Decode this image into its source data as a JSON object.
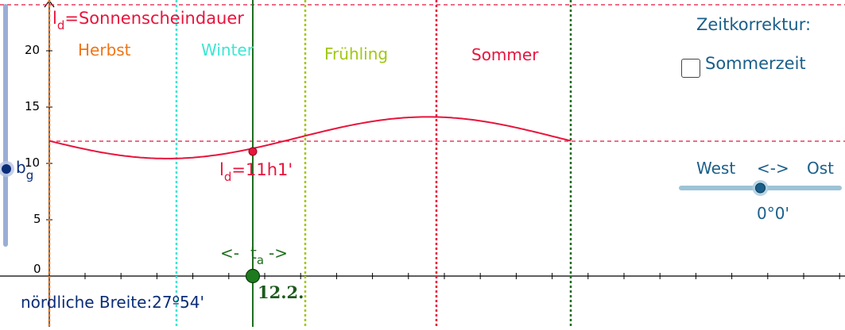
{
  "graph": {
    "y_axis_max_label": "",
    "y_ticks": [
      "0",
      "5",
      "10",
      "15",
      "20"
    ],
    "title": {
      "main": "l",
      "sub": "d",
      "rest": "=Sonnenscheindauer"
    },
    "seasons": {
      "autumn": "Herbst",
      "winter": "Winter",
      "spring": "Frühling",
      "summer": "Sommer"
    },
    "point_label": {
      "main": "l",
      "sub": "d",
      "rest": "=11h1'"
    },
    "ta_label": {
      "left": "<-",
      "main": "t",
      "sub": "a",
      "right": "->"
    },
    "date_label": "12.2.",
    "latitude_label": "nördliche Breite:27º54'",
    "bg_slider_label": {
      "main": "b",
      "sub": "g"
    },
    "colors": {
      "daylight_curve": "#e8143c",
      "autumn": "#f07414",
      "winter": "#3ce6d2",
      "spring": "#a0c814",
      "summer": "#e8143c",
      "time_marker": "#1e6e1e",
      "slider": "#1a5f8a",
      "latitude_text": "#0a2d78"
    }
  },
  "chart_data": {
    "type": "line",
    "series": [
      {
        "name": "",
        "x_values": [
          0,
          1
        ],
        "y_values": [
          12,
          12
        ]
      }
    ],
    "current_point": {
      "hours": 11.0,
      "value_text": "11h1'"
    }
  },
  "time_correction": {
    "title": "Zeitkorrektur:",
    "dst_label": "Sommerzeit",
    "dst_checked": false,
    "slider_left": "West",
    "slider_arrows": "<->",
    "slider_right": "Ost",
    "slider_value": "0°0'",
    "slider_fraction": 0.5
  },
  "icons": {
    "checkbox": "checkbox-icon",
    "slider_knob": "slider-knob-icon",
    "point": "point-icon"
  }
}
